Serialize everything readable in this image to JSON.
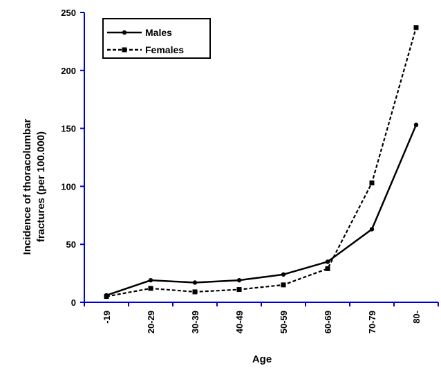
{
  "chart_data": {
    "type": "line",
    "title": "",
    "xlabel": "Age",
    "ylabel_lines": [
      "Incidence of thoracolumbar",
      "fractures (per 100.000)"
    ],
    "categories": [
      "-19",
      "20-29",
      "30-39",
      "40-49",
      "50-59",
      "60-69",
      "70-79",
      "80-"
    ],
    "ylim": [
      0,
      250
    ],
    "yticks": [
      "0",
      "50",
      "100",
      "150",
      "200",
      "250"
    ],
    "grid": false,
    "legend_position": "top-left",
    "axis_color": "#0000cc",
    "series": [
      {
        "name": "Males",
        "style": "solid",
        "marker": "circle",
        "color": "#000000",
        "values": [
          6,
          19,
          17,
          19,
          24,
          35,
          63,
          153
        ]
      },
      {
        "name": "Females",
        "style": "dashed",
        "marker": "square",
        "color": "#000000",
        "values": [
          5,
          12,
          9,
          11,
          15,
          29,
          103,
          237
        ]
      }
    ]
  }
}
